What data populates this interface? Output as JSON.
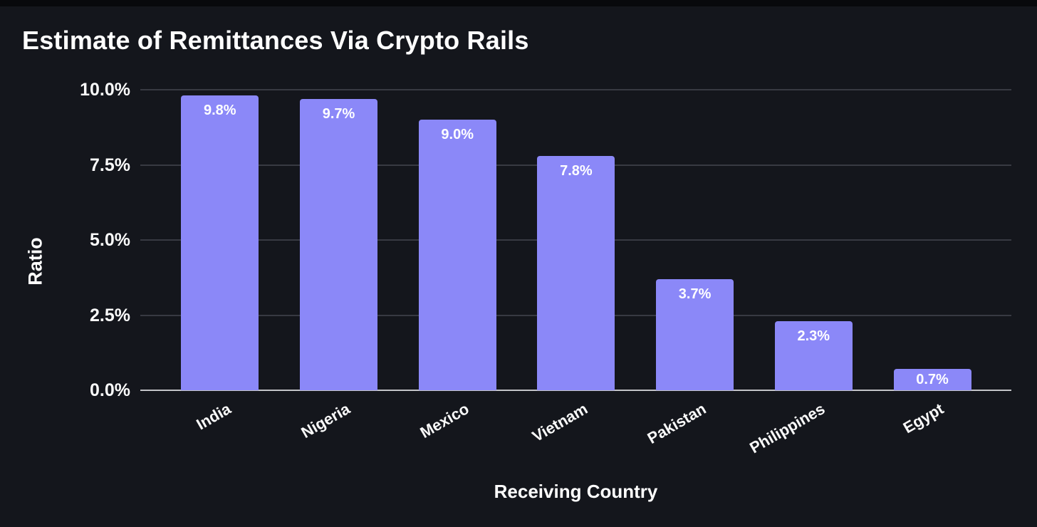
{
  "chart_data": {
    "type": "bar",
    "title": "Estimate of Remittances Via Crypto Rails",
    "xlabel": "Receiving Country",
    "ylabel": "Ratio",
    "categories": [
      "India",
      "Nigeria",
      "Mexico",
      "Vietnam",
      "Pakistan",
      "Philippines",
      "Egypt"
    ],
    "values": [
      9.8,
      9.7,
      9.0,
      7.8,
      3.7,
      2.3,
      0.7
    ],
    "bar_labels": [
      "9.8%",
      "9.7%",
      "9.0%",
      "7.8%",
      "3.7%",
      "2.3%",
      "0.7%"
    ],
    "ylim": [
      0,
      10
    ],
    "yticks": [
      0,
      2.5,
      5,
      7.5,
      10
    ],
    "ytick_labels": [
      "0.0%",
      "2.5%",
      "5.0%",
      "7.5%",
      "10.0%"
    ],
    "x_tick_rotation_deg": -30,
    "grid": true,
    "legend": false,
    "colors": {
      "bar": "#8b88f8",
      "background": "#14161c",
      "gridline": "#383a42",
      "zero_axis_line": "#c3c4c8",
      "text": "#ffffff"
    }
  }
}
